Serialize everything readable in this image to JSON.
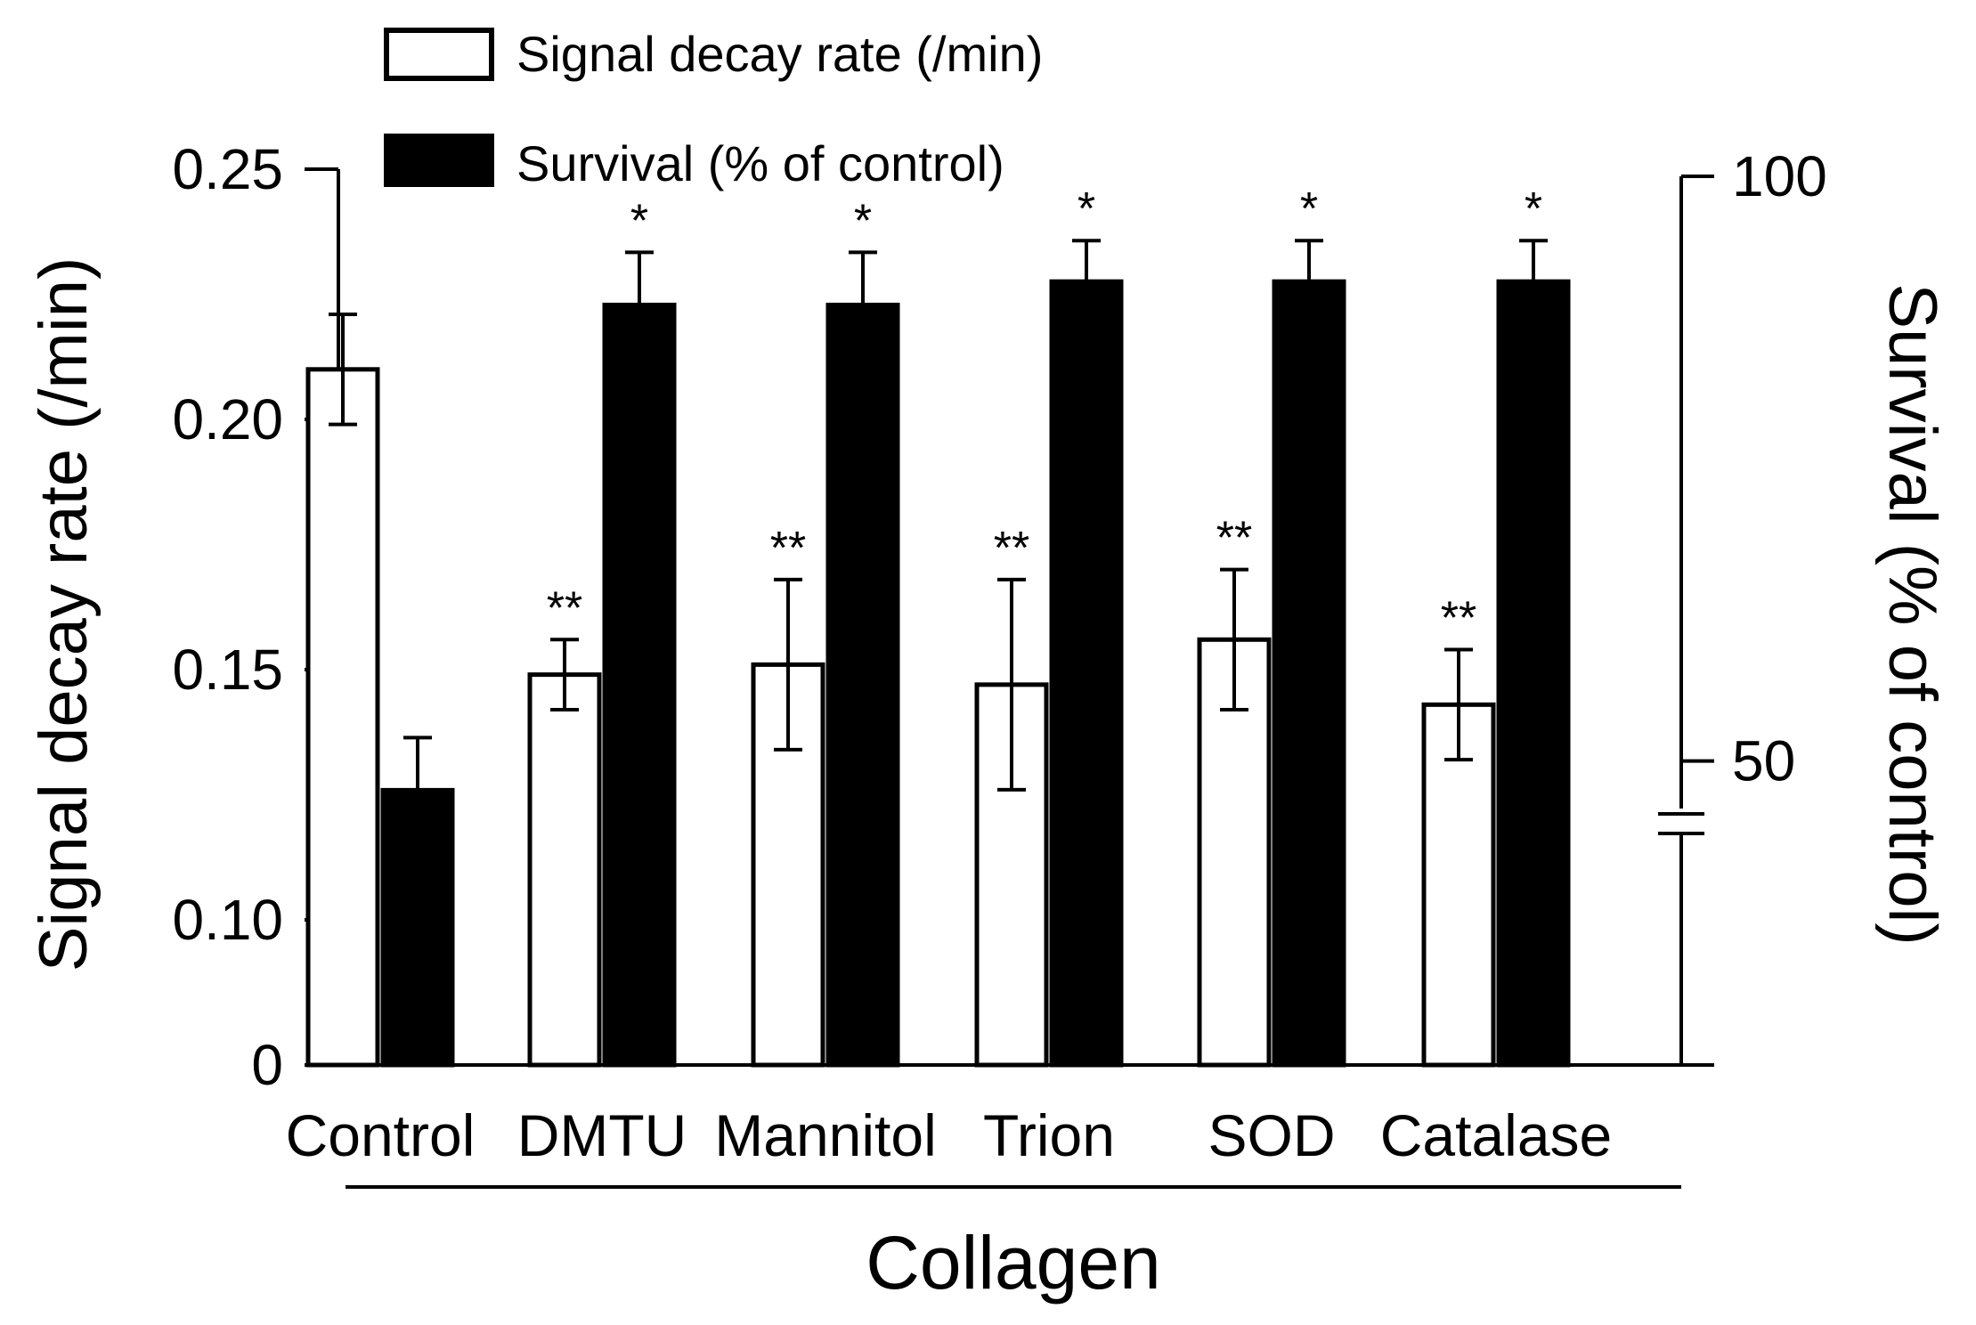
{
  "chart_data": {
    "type": "bar",
    "title": "",
    "group_label": "Collagen",
    "categories": [
      "Control",
      "DMTU",
      "Mannitol",
      "Trion",
      "SOD",
      "Catalase"
    ],
    "left_axis": {
      "label": "Signal decay rate (/min)",
      "ticks": [
        {
          "value": 0,
          "label": "0"
        },
        {
          "value": 0.1,
          "label": "0.10"
        },
        {
          "value": 0.15,
          "label": "0.15"
        },
        {
          "value": 0.2,
          "label": "0.20"
        },
        {
          "value": 0.25,
          "label": "0.25"
        }
      ],
      "axis_break": true,
      "scale_range": [
        0.071,
        0.25
      ]
    },
    "right_axis": {
      "label": "Survival (% of control)",
      "ticks": [
        {
          "value": 50,
          "label": "50"
        },
        {
          "value": 100,
          "label": "100"
        }
      ],
      "axis_break": true,
      "scale_range": [
        24,
        100
      ]
    },
    "series": [
      {
        "name": "Signal decay rate (/min)",
        "axis": "left",
        "fill": "#ffffff",
        "values": [
          0.21,
          0.149,
          0.151,
          0.147,
          0.156,
          0.143
        ],
        "errors": [
          0.011,
          0.007,
          0.017,
          0.021,
          0.014,
          0.011
        ],
        "significance": [
          "",
          "**",
          "**",
          "**",
          "**",
          "**"
        ]
      },
      {
        "name": "Survival (% of control)",
        "axis": "right",
        "fill": "#000000",
        "values": [
          47.5,
          89,
          89,
          91,
          91,
          91
        ],
        "errors": [
          4.5,
          4.5,
          4.5,
          3.5,
          3.5,
          3.5
        ],
        "significance": [
          "",
          "*",
          "*",
          "*",
          "*",
          "*"
        ]
      }
    ],
    "legend_position": "top-left"
  }
}
